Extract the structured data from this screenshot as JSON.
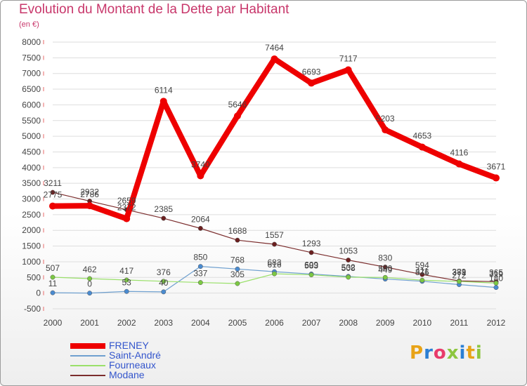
{
  "header": {
    "title": "Evolution du Montant de la Dette par Habitant",
    "subtitle": "(en €)"
  },
  "colors": {
    "title": "#c8376b",
    "axis_text": "#444444",
    "grid": "#dddddd",
    "tick_marks": "#e86a6a"
  },
  "logo": {
    "letters": [
      "P",
      "r",
      "o",
      "x",
      "i",
      "t",
      "i"
    ],
    "colors": [
      "#e8a317",
      "#2b7fd4",
      "#e83b6b",
      "#8dc63f",
      "#2b7fd4",
      "#e8a317",
      "#8dc63f"
    ]
  },
  "chart_data": {
    "type": "line",
    "title": "Evolution du Montant de la Dette par Habitant",
    "subtitle": "(en €)",
    "xlabel": "",
    "ylabel": "",
    "ylim": [
      -500,
      8000
    ],
    "yticks": [
      -500,
      0,
      500,
      1000,
      1500,
      2000,
      2500,
      3000,
      3500,
      4000,
      4500,
      5000,
      5500,
      6000,
      6500,
      7000,
      7500,
      8000
    ],
    "x": [
      "2000",
      "2001",
      "2002",
      "2003",
      "2004",
      "2005",
      "2006",
      "2007",
      "2008",
      "2009",
      "2010",
      "2011",
      "2012"
    ],
    "grid": true,
    "legend": "bottom-left",
    "series": [
      {
        "name": "Modane",
        "color": "#7b2d2d",
        "marker": "#6b1f1f",
        "width": 1.2,
        "values": [
          3211,
          2932,
          2659,
          2385,
          2064,
          1688,
          1557,
          1293,
          1053,
          830,
          594,
          389,
          365
        ]
      },
      {
        "name": "Saint-André",
        "color": "#6fa0cf",
        "marker": "#4a8bd0",
        "width": 1.2,
        "values": [
          11,
          0,
          53,
          40,
          850,
          768,
          683,
          609,
          532,
          449,
          376,
          272,
          180
        ]
      },
      {
        "name": "Fourneaux",
        "color": "#9ae06a",
        "marker": "#7cc843",
        "width": 1.2,
        "values": [
          507,
          462,
          417,
          376,
          337,
          305,
          616,
          583,
          508,
          500,
          411,
          371,
          319
        ]
      },
      {
        "name": "FRENEY",
        "color": "#ee0000",
        "marker": "#ee0000",
        "width": 8,
        "values": [
          2775,
          2786,
          2372,
          6114,
          3740,
          5646,
          7464,
          6693,
          7117,
          5203,
          4653,
          4116,
          3671
        ]
      }
    ],
    "legend_order": [
      "FRENEY",
      "Saint-André",
      "Fourneaux",
      "Modane"
    ]
  }
}
